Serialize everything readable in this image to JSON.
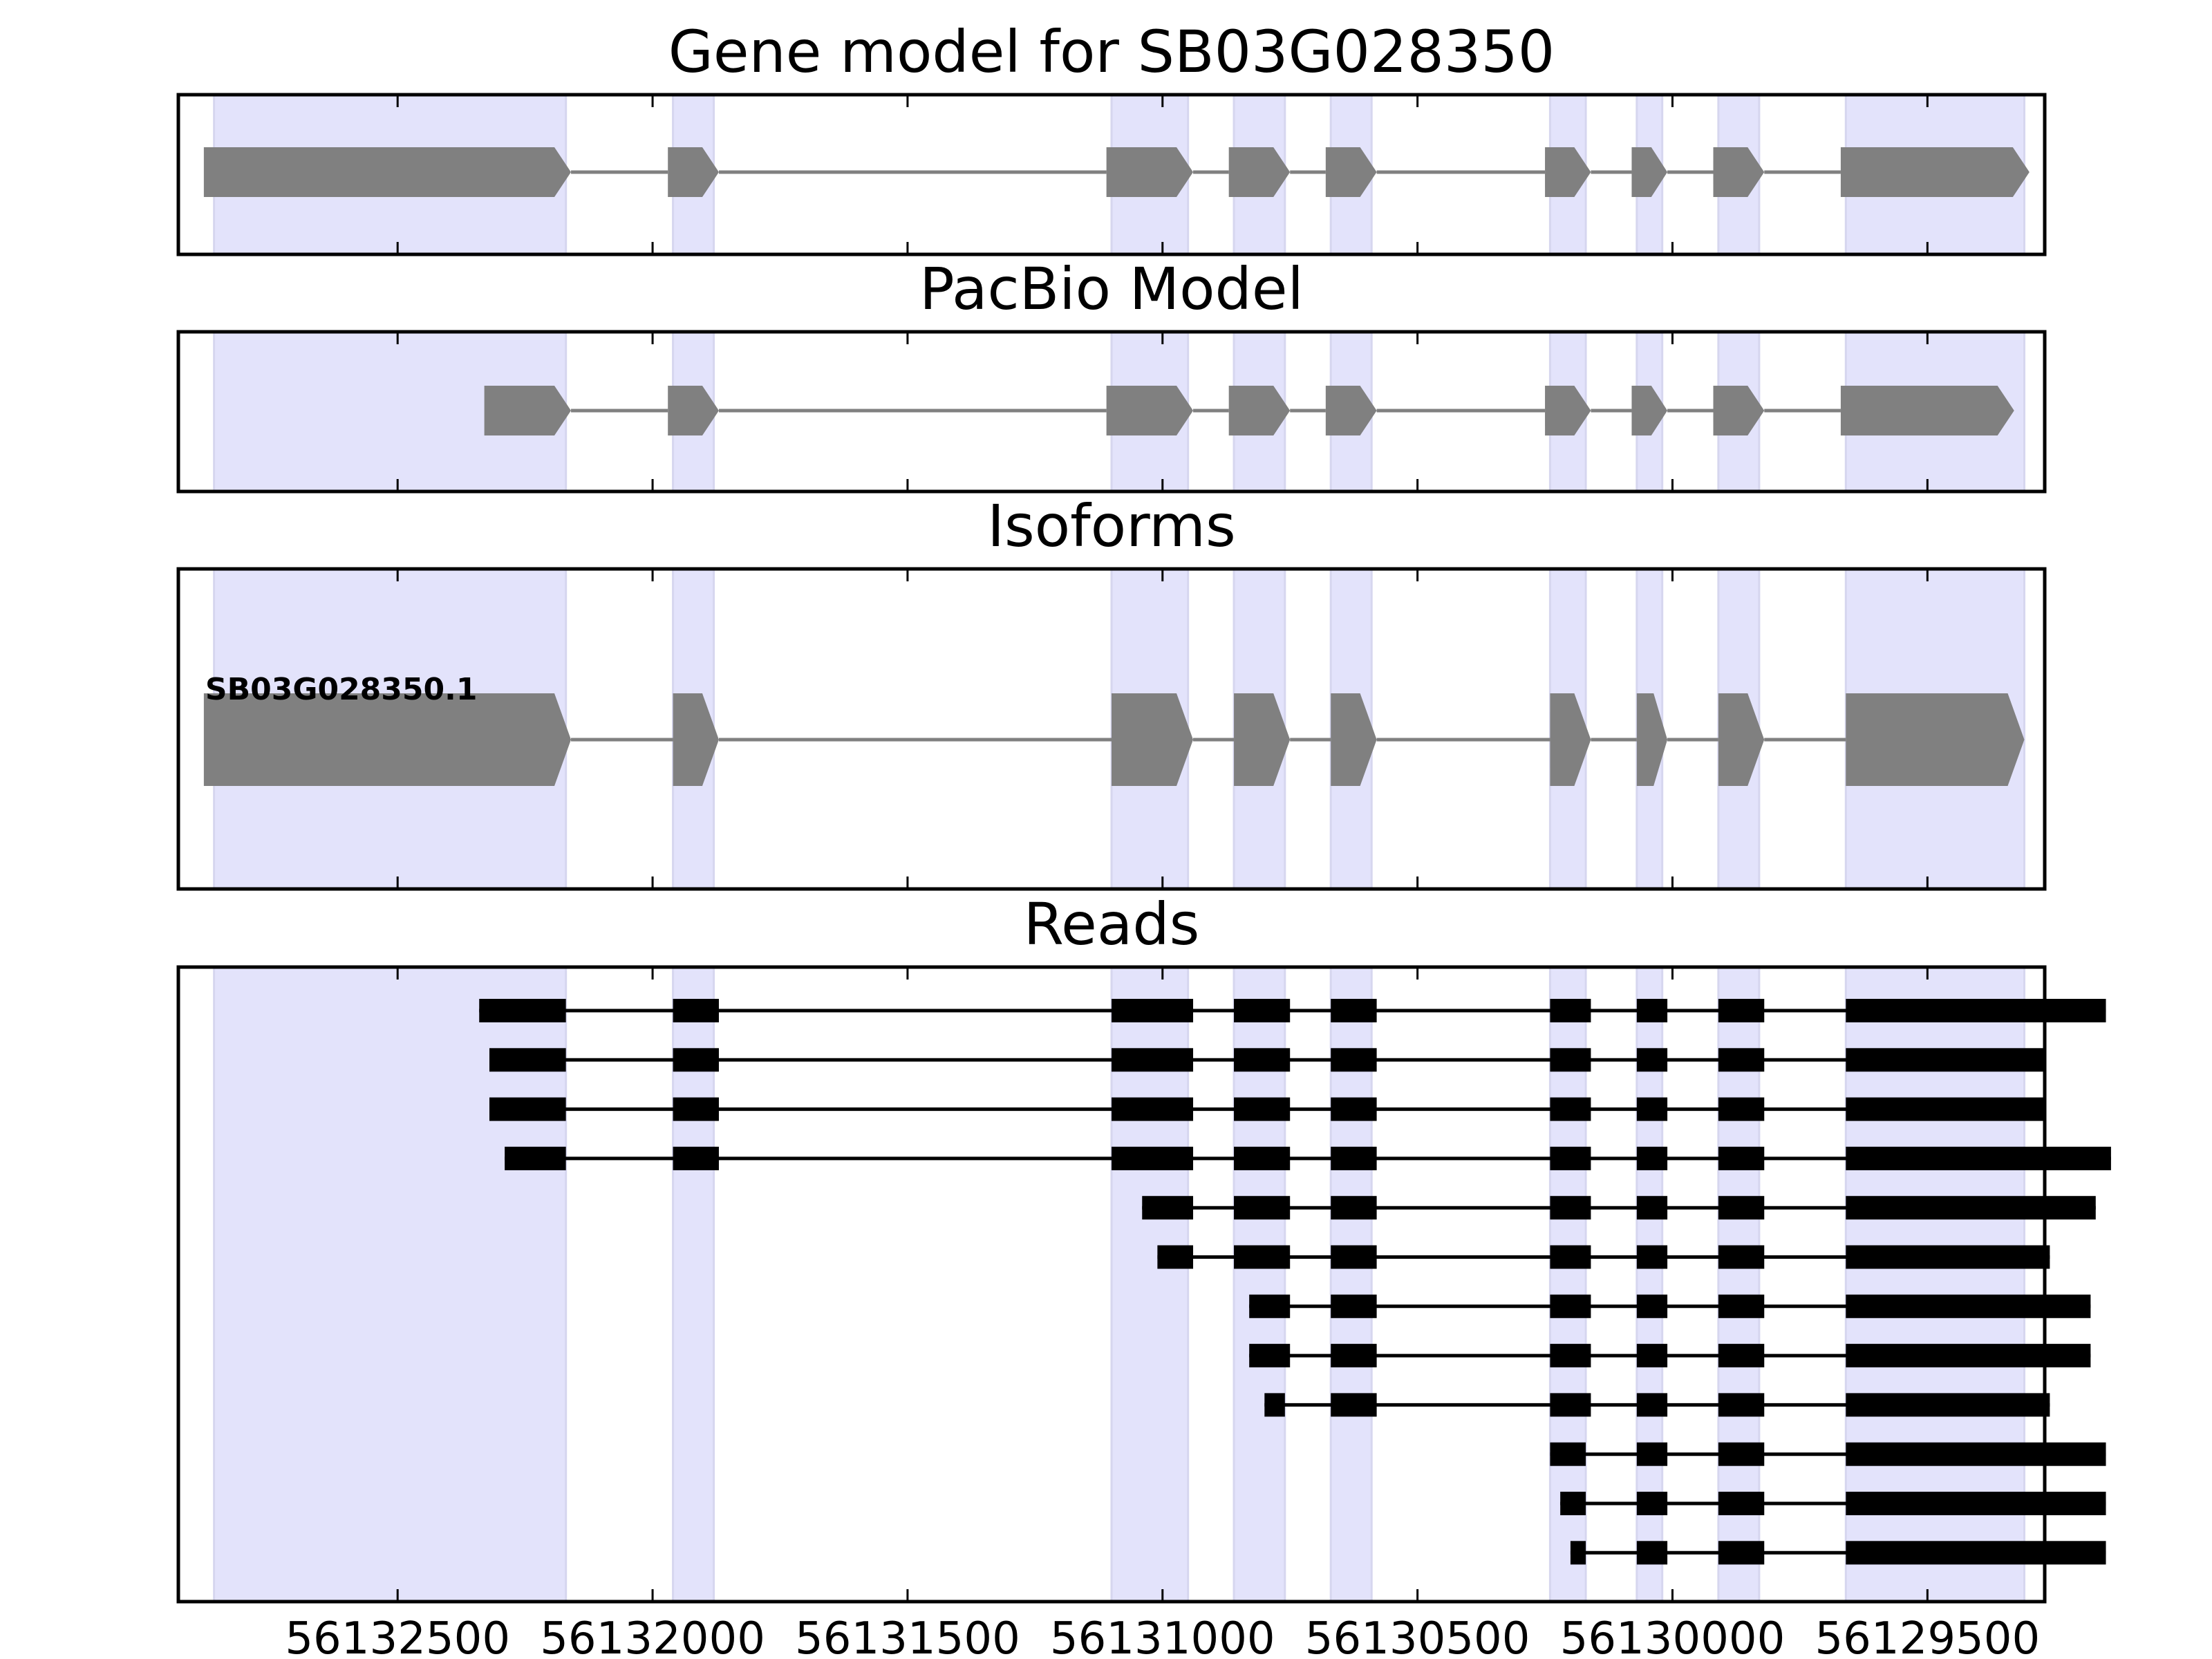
{
  "figure": {
    "panels": [
      {
        "id": "gene",
        "title": "Gene model for SB03G028350"
      },
      {
        "id": "pacbio",
        "title": "PacBio Model"
      },
      {
        "id": "isoforms",
        "title": "Isoforms"
      },
      {
        "id": "reads",
        "title": "Reads"
      }
    ],
    "x_axis": {
      "reversed": true,
      "range": [
        56132930,
        56129270
      ],
      "ticks": [
        "56132500",
        "56132000",
        "56131500",
        "56131000",
        "56130500",
        "56130000",
        "56129500"
      ]
    },
    "colors": {
      "exon_highlight": "#e3e3fb",
      "gene_feature": "#808080",
      "intron": "#808080",
      "read": "#000000"
    }
  },
  "chart_data": {
    "type": "gene_structure",
    "strand": "-",
    "exon_regions": [
      [
        56132860,
        56132170
      ],
      [
        56131960,
        56131880
      ],
      [
        56131100,
        56130950
      ],
      [
        56130860,
        56130760
      ],
      [
        56130670,
        56130590
      ],
      [
        56130240,
        56130170
      ],
      [
        56130070,
        56130020
      ],
      [
        56129910,
        56129830
      ],
      [
        56129660,
        56129310
      ]
    ],
    "gene_model": {
      "exons": [
        [
          56132880,
          56132160
        ],
        [
          56131970,
          56131870
        ],
        [
          56131110,
          56130940
        ],
        [
          56130870,
          56130750
        ],
        [
          56130680,
          56130580
        ],
        [
          56130250,
          56130160
        ],
        [
          56130080,
          56130010
        ],
        [
          56129920,
          56129820
        ],
        [
          56129670,
          56129300
        ]
      ]
    },
    "pacbio_model": {
      "exons": [
        [
          56132330,
          56132160
        ],
        [
          56131970,
          56131870
        ],
        [
          56131110,
          56130940
        ],
        [
          56130870,
          56130750
        ],
        [
          56130680,
          56130580
        ],
        [
          56130250,
          56130160
        ],
        [
          56130080,
          56130010
        ],
        [
          56129920,
          56129820
        ],
        [
          56129670,
          56129330
        ]
      ]
    },
    "isoforms": [
      {
        "name": "SB03G028350.1",
        "exons": [
          [
            56132880,
            56132160
          ],
          [
            56131960,
            56131870
          ],
          [
            56131100,
            56130940
          ],
          [
            56130860,
            56130750
          ],
          [
            56130670,
            56130580
          ],
          [
            56130240,
            56130160
          ],
          [
            56130070,
            56130010
          ],
          [
            56129910,
            56129820
          ],
          [
            56129660,
            56129310
          ]
        ]
      }
    ],
    "reads": [
      [
        [
          56132340,
          56132170
        ],
        [
          56131960,
          56131870
        ],
        [
          56131100,
          56130940
        ],
        [
          56130860,
          56130750
        ],
        [
          56130670,
          56130580
        ],
        [
          56130240,
          56130160
        ],
        [
          56130070,
          56130010
        ],
        [
          56129910,
          56129820
        ],
        [
          56129660,
          56129150
        ]
      ],
      [
        [
          56132320,
          56132170
        ],
        [
          56131960,
          56131870
        ],
        [
          56131100,
          56130940
        ],
        [
          56130860,
          56130750
        ],
        [
          56130670,
          56130580
        ],
        [
          56130240,
          56130160
        ],
        [
          56130070,
          56130010
        ],
        [
          56129910,
          56129820
        ],
        [
          56129660,
          56129270
        ]
      ],
      [
        [
          56132320,
          56132170
        ],
        [
          56131960,
          56131870
        ],
        [
          56131100,
          56130940
        ],
        [
          56130860,
          56130750
        ],
        [
          56130670,
          56130580
        ],
        [
          56130240,
          56130160
        ],
        [
          56130070,
          56130010
        ],
        [
          56129910,
          56129820
        ],
        [
          56129660,
          56129270
        ]
      ],
      [
        [
          56132290,
          56132170
        ],
        [
          56131960,
          56131870
        ],
        [
          56131100,
          56130940
        ],
        [
          56130860,
          56130750
        ],
        [
          56130670,
          56130580
        ],
        [
          56130240,
          56130160
        ],
        [
          56130070,
          56130010
        ],
        [
          56129910,
          56129820
        ],
        [
          56129660,
          56129140
        ]
      ],
      [
        [
          56131040,
          56130940
        ],
        [
          56130860,
          56130750
        ],
        [
          56130670,
          56130580
        ],
        [
          56130240,
          56130160
        ],
        [
          56130070,
          56130010
        ],
        [
          56129910,
          56129820
        ],
        [
          56129660,
          56129170
        ]
      ],
      [
        [
          56131010,
          56130940
        ],
        [
          56130860,
          56130750
        ],
        [
          56130670,
          56130580
        ],
        [
          56130240,
          56130160
        ],
        [
          56130070,
          56130010
        ],
        [
          56129910,
          56129820
        ],
        [
          56129660,
          56129260
        ]
      ],
      [
        [
          56130830,
          56130750
        ],
        [
          56130670,
          56130580
        ],
        [
          56130240,
          56130160
        ],
        [
          56130070,
          56130010
        ],
        [
          56129910,
          56129820
        ],
        [
          56129660,
          56129180
        ]
      ],
      [
        [
          56130830,
          56130750
        ],
        [
          56130670,
          56130580
        ],
        [
          56130240,
          56130160
        ],
        [
          56130070,
          56130010
        ],
        [
          56129910,
          56129820
        ],
        [
          56129660,
          56129180
        ]
      ],
      [
        [
          56130800,
          56130760
        ],
        [
          56130670,
          56130580
        ],
        [
          56130240,
          56130160
        ],
        [
          56130070,
          56130010
        ],
        [
          56129910,
          56129820
        ],
        [
          56129660,
          56129260
        ]
      ],
      [
        [
          56130240,
          56130170
        ],
        [
          56130070,
          56130010
        ],
        [
          56129910,
          56129820
        ],
        [
          56129660,
          56129150
        ]
      ],
      [
        [
          56130220,
          56130170
        ],
        [
          56130070,
          56130010
        ],
        [
          56129910,
          56129820
        ],
        [
          56129660,
          56129150
        ]
      ],
      [
        [
          56130200,
          56130170
        ],
        [
          56130070,
          56130010
        ],
        [
          56129910,
          56129820
        ],
        [
          56129660,
          56129150
        ]
      ]
    ]
  }
}
